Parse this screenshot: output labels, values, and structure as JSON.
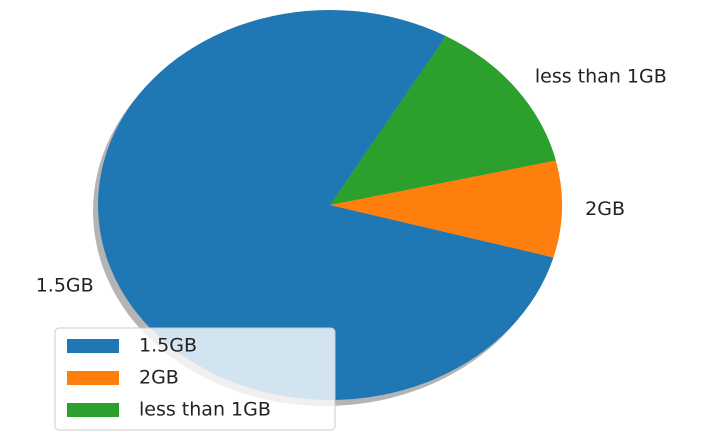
{
  "chart_data": {
    "type": "pie",
    "categories": [
      "1.5GB",
      "2GB",
      "less than 1GB"
    ],
    "values": [
      79,
      8,
      13
    ],
    "colors": [
      "#1f77b4",
      "#ff7f0e",
      "#2ca02c"
    ],
    "startangle": 60,
    "shadow": true,
    "legend": "lower left"
  }
}
